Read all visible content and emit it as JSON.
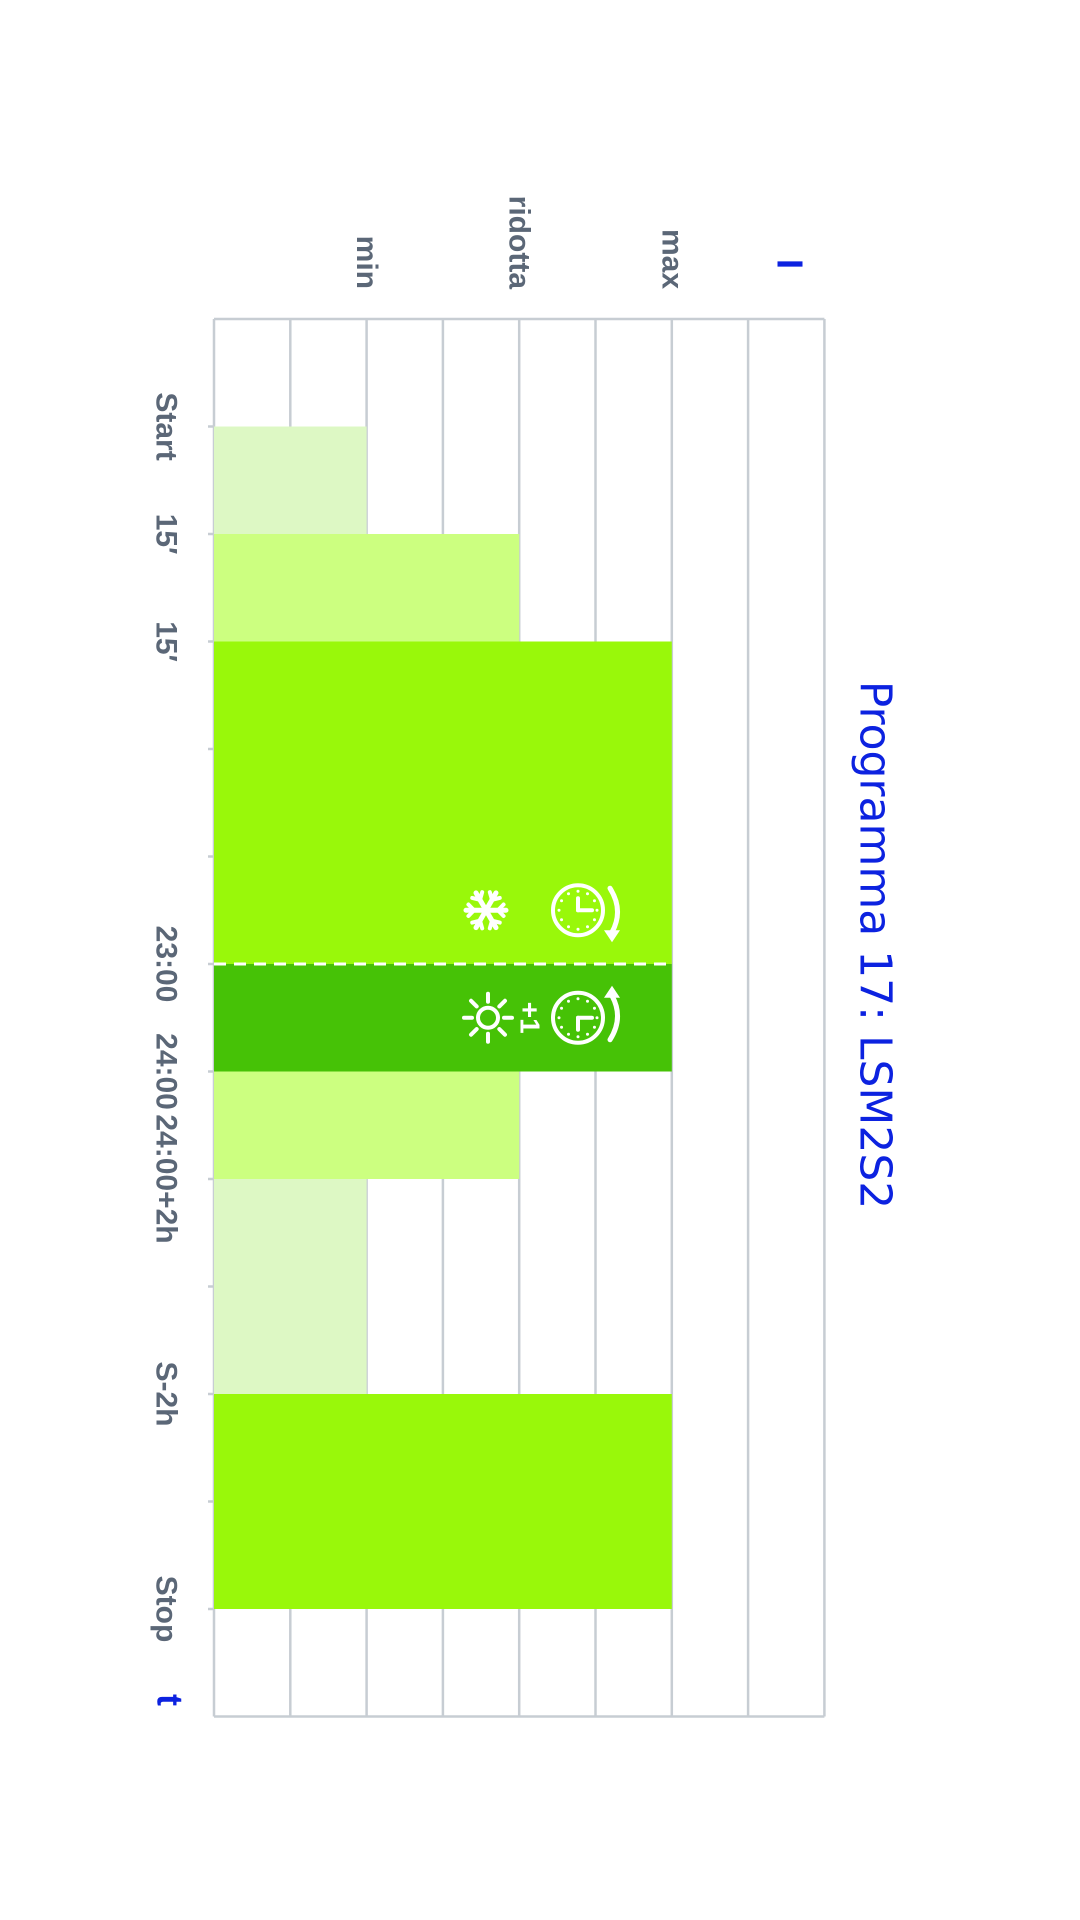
{
  "chart_data": {
    "type": "bar",
    "orientation": "rotated-90-clockwise",
    "title": "Programma 17: LSM2S2",
    "ylabel": "I",
    "xlabel": "t",
    "y_levels": [
      {
        "label": "min",
        "value": 2
      },
      {
        "label": "ridotta",
        "value": 4
      },
      {
        "label": "max",
        "value": 6
      }
    ],
    "ylim": [
      0,
      8
    ],
    "time_ticks": [
      "Start",
      "15′",
      "15′",
      "23:00",
      "24:00",
      "24:00+2h",
      "S-2h",
      "Stop"
    ],
    "segments": [
      {
        "from_slot": 1,
        "to_slot": 2,
        "level": 2,
        "color": "#ddf8c4"
      },
      {
        "from_slot": 2,
        "to_slot": 3,
        "level": 4,
        "color": "#ccff80"
      },
      {
        "from_slot": 3,
        "to_slot": 6,
        "level": 6,
        "color": "#99f80a"
      },
      {
        "from_slot": 6,
        "to_slot": 7,
        "level": 6,
        "color": "#46c206"
      },
      {
        "from_slot": 7,
        "to_slot": 8,
        "level": 4,
        "color": "#ccff80"
      },
      {
        "from_slot": 8,
        "to_slot": 10,
        "level": 2,
        "color": "#ddf8c4"
      },
      {
        "from_slot": 10,
        "to_slot": 12,
        "level": 6,
        "color": "#99f80a"
      }
    ],
    "annotations": [
      {
        "slot": 5.5,
        "icons": [
          "clock-back-icon",
          "snowflake-icon"
        ]
      },
      {
        "slot": 6.5,
        "icons": [
          "clock-forward-icon",
          "sun-icon"
        ],
        "text": "+1"
      }
    ],
    "grid": true
  }
}
